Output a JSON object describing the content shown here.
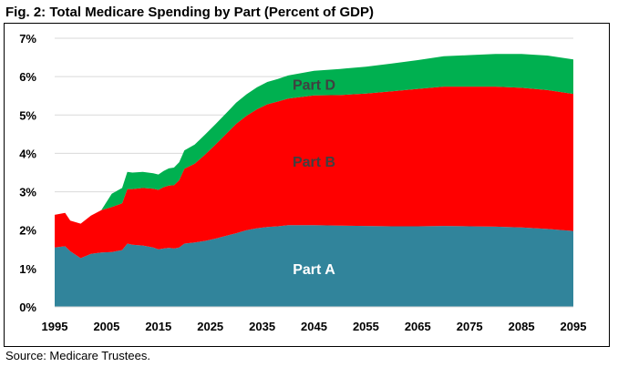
{
  "chart_data": {
    "type": "area",
    "title": "Fig. 2: Total Medicare Spending by Part (Percent of GDP)",
    "source": "Source: Medicare Trustees.",
    "xlabel": "",
    "ylabel": "",
    "xlim": [
      1995,
      2095
    ],
    "ylim": [
      0,
      7
    ],
    "y_ticks": [
      "0%",
      "1%",
      "2%",
      "3%",
      "4%",
      "5%",
      "6%",
      "7%"
    ],
    "x_ticks": [
      "1995",
      "2005",
      "2015",
      "2025",
      "2035",
      "2045",
      "2055",
      "2065",
      "2075",
      "2085",
      "2095"
    ],
    "grid": true,
    "stacked": true,
    "x": [
      1995,
      1997,
      1998,
      2000,
      2002,
      2004,
      2006,
      2008,
      2009,
      2010,
      2012,
      2014,
      2015,
      2016,
      2017,
      2018,
      2019,
      2020,
      2022,
      2024,
      2026,
      2028,
      2030,
      2032,
      2034,
      2036,
      2038,
      2040,
      2045,
      2050,
      2055,
      2060,
      2065,
      2070,
      2075,
      2080,
      2085,
      2090,
      2095
    ],
    "series": [
      {
        "name": "Part A",
        "color": "#31849B",
        "values": [
          1.55,
          1.58,
          1.45,
          1.27,
          1.38,
          1.42,
          1.43,
          1.48,
          1.65,
          1.62,
          1.6,
          1.55,
          1.5,
          1.52,
          1.54,
          1.52,
          1.55,
          1.65,
          1.68,
          1.72,
          1.78,
          1.85,
          1.92,
          2.0,
          2.05,
          2.08,
          2.1,
          2.13,
          2.13,
          2.12,
          2.11,
          2.1,
          2.1,
          2.11,
          2.1,
          2.09,
          2.07,
          2.03,
          1.98
        ]
      },
      {
        "name": "Part B",
        "color": "#FF0000",
        "values": [
          0.85,
          0.87,
          0.8,
          0.9,
          1.0,
          1.1,
          1.17,
          1.22,
          1.42,
          1.45,
          1.5,
          1.53,
          1.55,
          1.6,
          1.62,
          1.65,
          1.75,
          1.95,
          2.05,
          2.25,
          2.45,
          2.65,
          2.85,
          2.98,
          3.1,
          3.2,
          3.25,
          3.3,
          3.38,
          3.4,
          3.45,
          3.52,
          3.58,
          3.63,
          3.64,
          3.65,
          3.64,
          3.62,
          3.57
        ]
      },
      {
        "name": "Part D",
        "color": "#00B050",
        "values": [
          0,
          0,
          0,
          0,
          0,
          0,
          0.35,
          0.4,
          0.45,
          0.43,
          0.42,
          0.4,
          0.4,
          0.42,
          0.45,
          0.46,
          0.47,
          0.48,
          0.5,
          0.52,
          0.53,
          0.54,
          0.55,
          0.56,
          0.57,
          0.58,
          0.59,
          0.6,
          0.64,
          0.68,
          0.7,
          0.72,
          0.75,
          0.79,
          0.82,
          0.85,
          0.88,
          0.9,
          0.9
        ]
      }
    ],
    "area_labels": [
      {
        "name": "Part A",
        "text": "Part A",
        "x": 2045,
        "y": 1.0,
        "color": "#ffffff"
      },
      {
        "name": "Part B",
        "text": "Part B",
        "x": 2045,
        "y": 3.8,
        "color": "#404040"
      },
      {
        "name": "Part D",
        "text": "Part D",
        "x": 2045,
        "y": 5.8,
        "color": "#404040"
      }
    ],
    "grid_color": "#D9D9D9"
  }
}
